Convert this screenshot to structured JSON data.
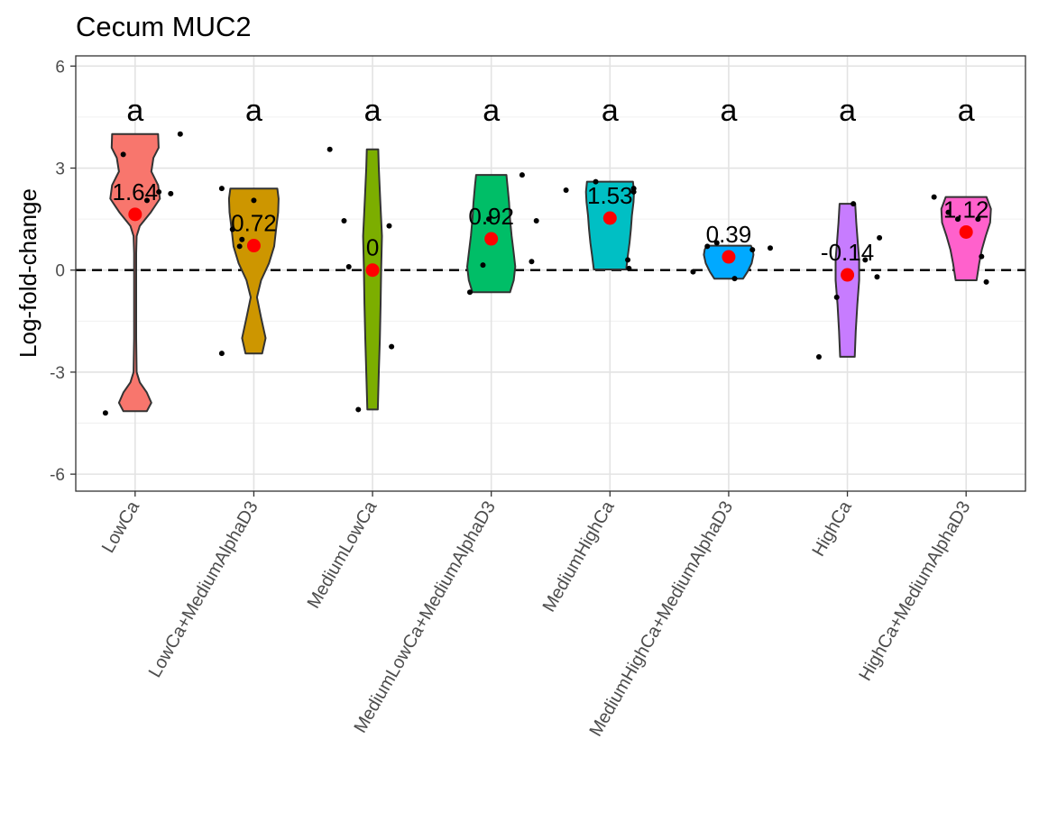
{
  "chart_data": {
    "type": "violin",
    "title": "Cecum MUC2",
    "xlabel": "",
    "ylabel": "Log-fold-change",
    "ylim": [
      -6.5,
      6.3
    ],
    "yticks": [
      -6,
      -3,
      0,
      3,
      6
    ],
    "ytick_labels": [
      "-6",
      "-3",
      "0",
      "3",
      "6"
    ],
    "grid": true,
    "reference_line": 0,
    "categories": [
      "LowCa",
      "LowCa+MediumAlphaD3",
      "MediumLowCa",
      "MediumLowCa+MediumAlphaD3",
      "MediumHighCa",
      "MediumHighCa+MediumAlphaD3",
      "HighCa",
      "HighCa+MediumAlphaD3"
    ],
    "colors": [
      "#F8766D",
      "#CD9600",
      "#7CAE00",
      "#00BE67",
      "#00BFC4",
      "#00A9FF",
      "#C77CFF",
      "#FF61CC"
    ],
    "significance_letters": [
      "a",
      "a",
      "a",
      "a",
      "a",
      "a",
      "a",
      "a"
    ],
    "means": [
      1.64,
      0.72,
      0,
      0.92,
      1.53,
      0.39,
      -0.14,
      1.12
    ],
    "mean_labels": [
      "1.64",
      "0.72",
      "0",
      "0.92",
      "1.53",
      "0.39",
      "-0.14",
      "1.12"
    ],
    "violins": [
      [
        [
          -4.15,
          0.45
        ],
        [
          -3.9,
          0.62
        ],
        [
          -3.6,
          0.45
        ],
        [
          -3.3,
          0.18
        ],
        [
          -3.0,
          0.06
        ],
        [
          -2.0,
          0.04
        ],
        [
          -0.5,
          0.04
        ],
        [
          0.5,
          0.04
        ],
        [
          1.0,
          0.06
        ],
        [
          1.3,
          0.18
        ],
        [
          1.7,
          0.6
        ],
        [
          2.1,
          0.95
        ],
        [
          2.5,
          0.88
        ],
        [
          2.9,
          0.62
        ],
        [
          3.3,
          0.7
        ],
        [
          3.6,
          0.9
        ],
        [
          4.0,
          0.88
        ]
      ],
      [
        [
          -2.45,
          0.32
        ],
        [
          -2.0,
          0.45
        ],
        [
          -1.4,
          0.28
        ],
        [
          -0.8,
          0.12
        ],
        [
          -0.3,
          0.28
        ],
        [
          0.2,
          0.58
        ],
        [
          0.7,
          0.78
        ],
        [
          1.2,
          0.85
        ],
        [
          1.7,
          0.93
        ],
        [
          2.1,
          0.95
        ],
        [
          2.4,
          0.9
        ]
      ],
      [
        [
          -4.1,
          0.2
        ],
        [
          -3.0,
          0.24
        ],
        [
          -2.0,
          0.28
        ],
        [
          -1.0,
          0.31
        ],
        [
          0.0,
          0.33
        ],
        [
          1.0,
          0.36
        ],
        [
          2.0,
          0.3
        ],
        [
          3.0,
          0.24
        ],
        [
          3.55,
          0.22
        ]
      ],
      [
        [
          -0.65,
          0.72
        ],
        [
          -0.3,
          0.86
        ],
        [
          0.1,
          0.92
        ],
        [
          0.5,
          0.86
        ],
        [
          1.0,
          0.78
        ],
        [
          1.5,
          0.72
        ],
        [
          2.0,
          0.68
        ],
        [
          2.5,
          0.62
        ],
        [
          2.8,
          0.58
        ]
      ],
      [
        [
          0.02,
          0.62
        ],
        [
          0.4,
          0.68
        ],
        [
          0.8,
          0.75
        ],
        [
          1.2,
          0.8
        ],
        [
          1.6,
          0.84
        ],
        [
          2.0,
          0.9
        ],
        [
          2.3,
          0.92
        ],
        [
          2.6,
          0.88
        ]
      ],
      [
        [
          -0.25,
          0.55
        ],
        [
          -0.05,
          0.72
        ],
        [
          0.2,
          0.88
        ],
        [
          0.45,
          0.95
        ],
        [
          0.6,
          0.92
        ],
        [
          0.72,
          0.85
        ]
      ],
      [
        [
          -2.55,
          0.28
        ],
        [
          -1.8,
          0.32
        ],
        [
          -1.0,
          0.38
        ],
        [
          -0.3,
          0.45
        ],
        [
          0.3,
          0.45
        ],
        [
          0.8,
          0.4
        ],
        [
          1.4,
          0.34
        ],
        [
          1.95,
          0.3
        ]
      ],
      [
        [
          -0.3,
          0.4
        ],
        [
          0.2,
          0.5
        ],
        [
          0.6,
          0.6
        ],
        [
          1.0,
          0.75
        ],
        [
          1.4,
          0.92
        ],
        [
          1.8,
          0.95
        ],
        [
          2.15,
          0.78
        ]
      ]
    ],
    "points": [
      [
        [
          -4.2,
          -0.25
        ],
        [
          3.4,
          -0.1
        ],
        [
          2.3,
          0.2
        ],
        [
          2.05,
          0.1
        ],
        [
          2.25,
          0.3
        ],
        [
          4.0,
          0.38
        ]
      ],
      [
        [
          2.4,
          -0.27
        ],
        [
          1.2,
          -0.18
        ],
        [
          0.7,
          -0.12
        ],
        [
          0.9,
          -0.1
        ],
        [
          2.05,
          0.0
        ],
        [
          -2.45,
          -0.27
        ]
      ],
      [
        [
          3.55,
          -0.36
        ],
        [
          1.45,
          -0.24
        ],
        [
          0.1,
          -0.2
        ],
        [
          -4.1,
          -0.12
        ],
        [
          1.3,
          0.14
        ],
        [
          -2.25,
          0.16
        ]
      ],
      [
        [
          -0.65,
          -0.18
        ],
        [
          0.15,
          -0.07
        ],
        [
          1.5,
          -0.02
        ],
        [
          2.8,
          0.26
        ],
        [
          1.45,
          0.38
        ],
        [
          0.25,
          0.34
        ]
      ],
      [
        [
          2.35,
          -0.37
        ],
        [
          2.6,
          -0.12
        ],
        [
          2.3,
          0.2
        ],
        [
          0.3,
          0.15
        ],
        [
          0.05,
          0.16
        ],
        [
          2.4,
          0.2
        ]
      ],
      [
        [
          0.7,
          -0.18
        ],
        [
          -0.05,
          -0.3
        ],
        [
          0.8,
          -0.1
        ],
        [
          -0.25,
          0.05
        ],
        [
          0.6,
          0.2
        ],
        [
          0.65,
          0.35
        ]
      ],
      [
        [
          -2.55,
          -0.24
        ],
        [
          -0.8,
          -0.09
        ],
        [
          1.95,
          0.05
        ],
        [
          -0.2,
          0.25
        ],
        [
          0.95,
          0.27
        ],
        [
          0.3,
          0.15
        ]
      ],
      [
        [
          2.15,
          -0.27
        ],
        [
          1.7,
          -0.15
        ],
        [
          1.5,
          -0.07
        ],
        [
          0.4,
          0.13
        ],
        [
          -0.35,
          0.17
        ],
        [
          1.5,
          0.1
        ]
      ]
    ]
  }
}
